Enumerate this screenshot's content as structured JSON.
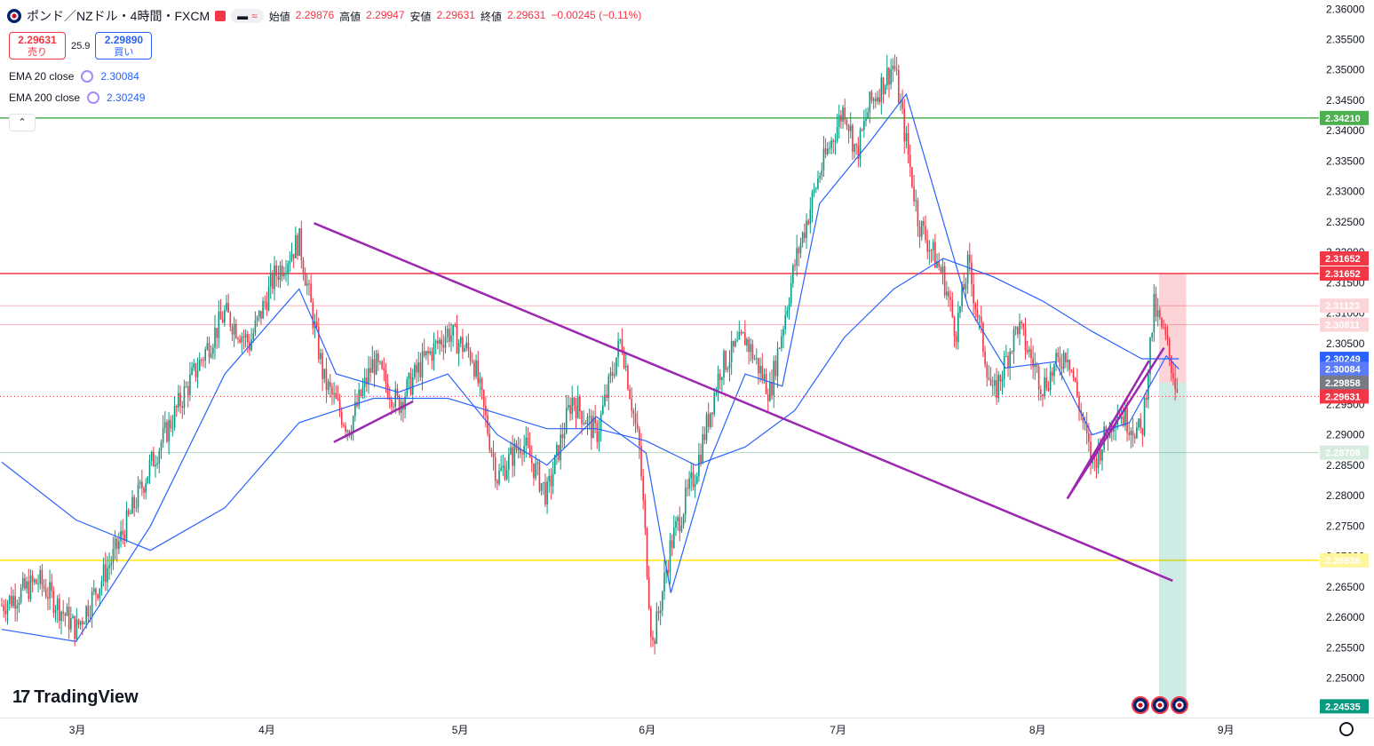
{
  "header": {
    "symbol_title": "ポンド／NZドル・4時間・FXCM",
    "pill_symbol_a": "▬",
    "pill_symbol_b": "≈",
    "open_label": "始値",
    "open_value": "2.29876",
    "high_label": "高値",
    "high_value": "2.29947",
    "low_label": "安値",
    "low_value": "2.29631",
    "close_label": "終値",
    "close_value": "2.29631",
    "change_value": "−0.00245 (−0.11%)"
  },
  "trade": {
    "sell_price": "2.29631",
    "sell_label": "売り",
    "spread": "25.9",
    "buy_price": "2.29890",
    "buy_label": "買い"
  },
  "indicators": [
    {
      "name": "EMA 20 close",
      "value": "2.30084"
    },
    {
      "name": "EMA 200 close",
      "value": "2.30249"
    }
  ],
  "collapse_label": "⌃",
  "logo_text": "TradingView",
  "logo_mark": "17",
  "colors": {
    "up": "#089981",
    "down": "#f23645",
    "ema": "#2962ff",
    "trend": "#9c27b0",
    "green_line": "#4caf50",
    "red_line": "#f23645",
    "yellow_line": "#ffeb3b"
  },
  "chart_data": {
    "type": "candlestick",
    "x_ticks": [
      "3月",
      "4月",
      "5月",
      "6月",
      "7月",
      "8月",
      "9月"
    ],
    "ylim": [
      2.2435,
      2.3615
    ],
    "y_ticks": [
      "2.36000",
      "2.35500",
      "2.35000",
      "2.34500",
      "2.34000",
      "2.33500",
      "2.33000",
      "2.32500",
      "2.32000",
      "2.31500",
      "2.31000",
      "2.30500",
      "2.30000",
      "2.29500",
      "2.29000",
      "2.28500",
      "2.28000",
      "2.27500",
      "2.27000",
      "2.26500",
      "2.26000",
      "2.25500",
      "2.25000"
    ],
    "price_path": [
      {
        "t": 0,
        "p": 2.262
      },
      {
        "t": 3,
        "p": 2.266
      },
      {
        "t": 6,
        "p": 2.258
      },
      {
        "t": 9,
        "p": 2.27
      },
      {
        "t": 12,
        "p": 2.285
      },
      {
        "t": 15,
        "p": 2.298
      },
      {
        "t": 18,
        "p": 2.31
      },
      {
        "t": 20,
        "p": 2.305
      },
      {
        "t": 22,
        "p": 2.316
      },
      {
        "t": 24,
        "p": 2.322
      },
      {
        "t": 26,
        "p": 2.299
      },
      {
        "t": 28,
        "p": 2.291
      },
      {
        "t": 30,
        "p": 2.302
      },
      {
        "t": 32,
        "p": 2.295
      },
      {
        "t": 34,
        "p": 2.302
      },
      {
        "t": 36,
        "p": 2.307
      },
      {
        "t": 38,
        "p": 2.303
      },
      {
        "t": 40,
        "p": 2.283
      },
      {
        "t": 42,
        "p": 2.289
      },
      {
        "t": 44,
        "p": 2.28
      },
      {
        "t": 46,
        "p": 2.296
      },
      {
        "t": 48,
        "p": 2.29
      },
      {
        "t": 50,
        "p": 2.306
      },
      {
        "t": 51.5,
        "p": 2.287
      },
      {
        "t": 52.5,
        "p": 2.255
      },
      {
        "t": 54,
        "p": 2.272
      },
      {
        "t": 56,
        "p": 2.284
      },
      {
        "t": 58,
        "p": 2.301
      },
      {
        "t": 60,
        "p": 2.306
      },
      {
        "t": 62,
        "p": 2.297
      },
      {
        "t": 64,
        "p": 2.318
      },
      {
        "t": 66,
        "p": 2.333
      },
      {
        "t": 68,
        "p": 2.344
      },
      {
        "t": 69,
        "p": 2.336
      },
      {
        "t": 70,
        "p": 2.344
      },
      {
        "t": 72,
        "p": 2.351
      },
      {
        "t": 73,
        "p": 2.338
      },
      {
        "t": 74,
        "p": 2.325
      },
      {
        "t": 76,
        "p": 2.316
      },
      {
        "t": 77,
        "p": 2.307
      },
      {
        "t": 78,
        "p": 2.318
      },
      {
        "t": 80,
        "p": 2.296
      },
      {
        "t": 82,
        "p": 2.308
      },
      {
        "t": 84,
        "p": 2.298
      },
      {
        "t": 86,
        "p": 2.304
      },
      {
        "t": 88,
        "p": 2.285
      },
      {
        "t": 90,
        "p": 2.294
      },
      {
        "t": 92,
        "p": 2.29
      },
      {
        "t": 93,
        "p": 2.311
      },
      {
        "t": 94,
        "p": 2.305
      },
      {
        "t": 95,
        "p": 2.2963
      }
    ],
    "ema20": [
      {
        "t": 0,
        "p": 2.258
      },
      {
        "t": 6,
        "p": 2.256
      },
      {
        "t": 12,
        "p": 2.275
      },
      {
        "t": 18,
        "p": 2.3
      },
      {
        "t": 24,
        "p": 2.314
      },
      {
        "t": 27,
        "p": 2.3
      },
      {
        "t": 32,
        "p": 2.297
      },
      {
        "t": 36,
        "p": 2.3
      },
      {
        "t": 40,
        "p": 2.29
      },
      {
        "t": 44,
        "p": 2.285
      },
      {
        "t": 48,
        "p": 2.293
      },
      {
        "t": 52,
        "p": 2.287
      },
      {
        "t": 54,
        "p": 2.264
      },
      {
        "t": 57,
        "p": 2.285
      },
      {
        "t": 60,
        "p": 2.3
      },
      {
        "t": 63,
        "p": 2.298
      },
      {
        "t": 66,
        "p": 2.328
      },
      {
        "t": 70,
        "p": 2.338
      },
      {
        "t": 73,
        "p": 2.346
      },
      {
        "t": 76,
        "p": 2.325
      },
      {
        "t": 78,
        "p": 2.311
      },
      {
        "t": 81,
        "p": 2.301
      },
      {
        "t": 85,
        "p": 2.302
      },
      {
        "t": 88,
        "p": 2.29
      },
      {
        "t": 91,
        "p": 2.292
      },
      {
        "t": 94,
        "p": 2.303
      },
      {
        "t": 95,
        "p": 2.3008
      }
    ],
    "ema200": [
      {
        "t": 0,
        "p": 2.2855
      },
      {
        "t": 6,
        "p": 2.276
      },
      {
        "t": 12,
        "p": 2.271
      },
      {
        "t": 18,
        "p": 2.278
      },
      {
        "t": 24,
        "p": 2.292
      },
      {
        "t": 30,
        "p": 2.296
      },
      {
        "t": 36,
        "p": 2.296
      },
      {
        "t": 40,
        "p": 2.2935
      },
      {
        "t": 44,
        "p": 2.291
      },
      {
        "t": 48,
        "p": 2.291
      },
      {
        "t": 52,
        "p": 2.289
      },
      {
        "t": 56,
        "p": 2.285
      },
      {
        "t": 60,
        "p": 2.288
      },
      {
        "t": 64,
        "p": 2.294
      },
      {
        "t": 68,
        "p": 2.306
      },
      {
        "t": 72,
        "p": 2.314
      },
      {
        "t": 76,
        "p": 2.319
      },
      {
        "t": 80,
        "p": 2.316
      },
      {
        "t": 84,
        "p": 2.312
      },
      {
        "t": 88,
        "p": 2.307
      },
      {
        "t": 92,
        "p": 2.3025
      },
      {
        "t": 95,
        "p": 2.3025
      }
    ],
    "trend_lines": [
      {
        "t1": 25.2,
        "p1": 2.3248,
        "t2": 94.5,
        "p2": 2.266
      },
      {
        "t1": 26.8,
        "p1": 2.2888,
        "t2": 33.2,
        "p2": 2.2955
      },
      {
        "t1": 86.0,
        "p1": 2.2795,
        "t2": 93.8,
        "p2": 2.3043
      },
      {
        "t1": 86.0,
        "p1": 2.2795,
        "t2": 92.6,
        "p2": 2.3022
      }
    ],
    "levels": [
      {
        "price": 2.3421,
        "label": "2.34210",
        "style": "green"
      },
      {
        "price": 2.31652,
        "label": "2.31652",
        "style": "red"
      },
      {
        "price": 2.31123,
        "label": "2.31123",
        "style": "pink"
      },
      {
        "price": 2.30811,
        "label": "2.30811",
        "style": "pink"
      },
      {
        "price": 2.28708,
        "label": "2.28708",
        "style": "lightgreen"
      },
      {
        "price": 2.26936,
        "label": "2.26936",
        "style": "yellow"
      }
    ],
    "price_tags": [
      {
        "price": 2.31652,
        "label": "2.31652",
        "color": "#f23645",
        "offset": -17
      },
      {
        "price": 2.31652,
        "label": "2.31652",
        "color": "#f23645",
        "offset": 0
      },
      {
        "price": 2.31123,
        "label": "2.31123",
        "color": "#fbd5d8",
        "text": "#131722",
        "offset": 0
      },
      {
        "price": 2.30811,
        "label": "2.30811",
        "color": "#fbd5d8",
        "text": "#131722",
        "offset": 0
      },
      {
        "price": 2.30249,
        "label": "2.30249",
        "color": "#2962ff",
        "offset": 0
      },
      {
        "price": 2.30084,
        "label": "2.30084",
        "color": "#5b7cfa",
        "offset": 0
      },
      {
        "price": 2.29858,
        "label": "2.29858",
        "color": "#787b86",
        "offset": 0
      },
      {
        "price": 2.29631,
        "label": "2.29631",
        "color": "#f23645",
        "offset": 0
      },
      {
        "price": 2.28708,
        "label": "2.28708",
        "color": "#d7ecdf",
        "text": "#131722",
        "offset": 0
      },
      {
        "price": 2.3421,
        "label": "2.34210",
        "color": "#4caf50",
        "offset": 0
      },
      {
        "price": 2.26936,
        "label": "2.26936",
        "color": "#fff59d",
        "text": "#131722",
        "offset": 0
      },
      {
        "price": 2.24535,
        "label": "2.24535",
        "color": "#089981",
        "offset": 0
      }
    ],
    "position": {
      "t1": 93.4,
      "t2": 95.6,
      "entry": 2.29858,
      "stop": 2.31652,
      "target": 2.24535
    }
  }
}
